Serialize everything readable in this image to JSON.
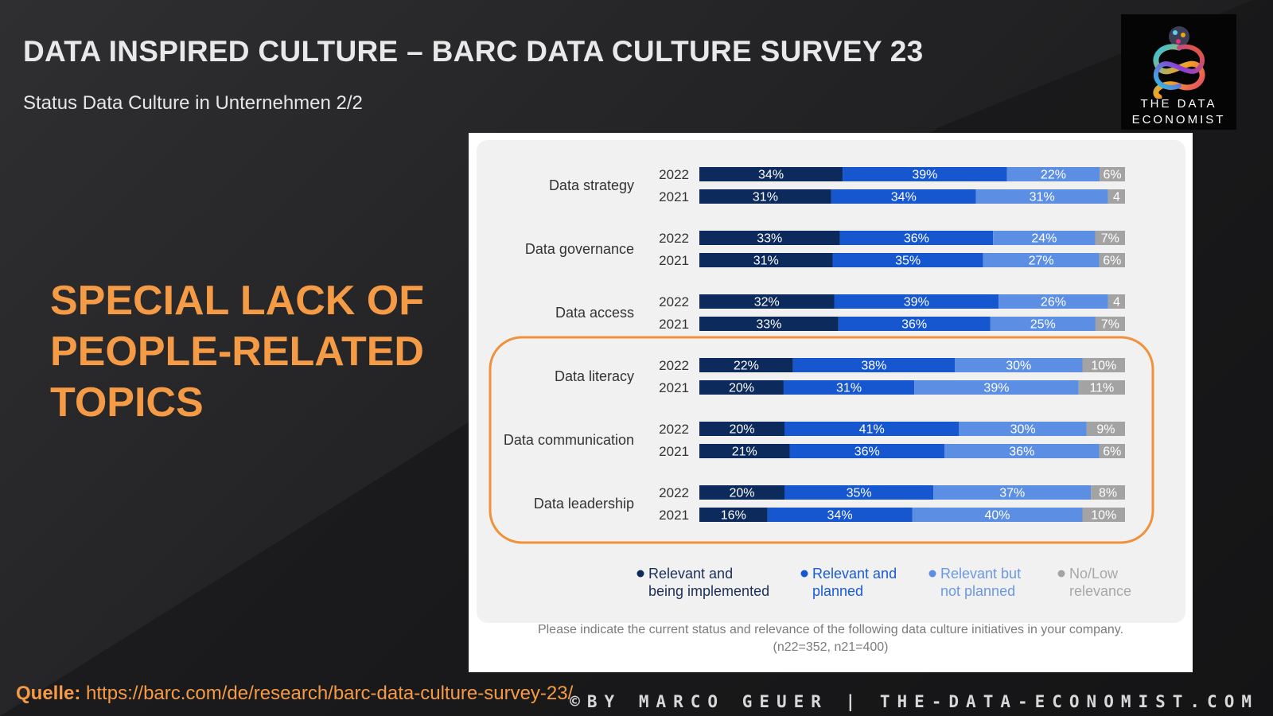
{
  "slide": {
    "title": "DATA INSPIRED CULTURE – BARC DATA CULTURE SURVEY 23",
    "subtitle": "Status Data Culture in Unternehmen 2/2",
    "highlight_lines": [
      "SPECIAL LACK OF",
      "PEOPLE-RELATED",
      "TOPICS"
    ],
    "source_label": "Quelle:",
    "source_url": "https://barc.com/de/research/barc-data-culture-survey-23/",
    "copyright": "©BY MARCO GEUER | THE-DATA-ECONOMIST.COM",
    "logo_lines": [
      "THE DATA",
      "ECONOMIST"
    ],
    "logo_icon": "infinity-head-logo-icon",
    "accent_color": "#f59a45"
  },
  "chart_data": {
    "type": "bar",
    "orientation": "horizontal",
    "stacked": true,
    "percent_scale": true,
    "categories": [
      "Data strategy",
      "Data governance",
      "Data access",
      "Data literacy",
      "Data communication",
      "Data leadership"
    ],
    "years": [
      "2022",
      "2021"
    ],
    "series": [
      {
        "name": "Relevant and being implemented",
        "color": "#0c2a5b",
        "label_color": "#1b2f57",
        "values": [
          [
            34,
            31
          ],
          [
            33,
            31
          ],
          [
            32,
            33
          ],
          [
            22,
            20
          ],
          [
            20,
            21
          ],
          [
            20,
            16
          ]
        ]
      },
      {
        "name": "Relevant and planned",
        "color": "#1657d0",
        "label_color": "#1a5ad6",
        "values": [
          [
            39,
            34
          ],
          [
            36,
            35
          ],
          [
            39,
            36
          ],
          [
            38,
            31
          ],
          [
            41,
            36
          ],
          [
            35,
            34
          ]
        ]
      },
      {
        "name": "Relevant but not planned",
        "color": "#5c8fe3",
        "label_color": "#6b98e6",
        "values": [
          [
            22,
            31
          ],
          [
            24,
            27
          ],
          [
            26,
            25
          ],
          [
            30,
            39
          ],
          [
            30,
            36
          ],
          [
            37,
            40
          ]
        ]
      },
      {
        "name": "No/Low relevance",
        "color": "#a3a3a3",
        "label_color": "#a8a8a8",
        "values": [
          [
            6,
            4
          ],
          [
            7,
            6
          ],
          [
            4,
            7
          ],
          [
            10,
            11
          ],
          [
            9,
            6
          ],
          [
            8,
            10
          ]
        ]
      }
    ],
    "value_labels": [
      [
        [
          "34%",
          "39%",
          "22%",
          "6%"
        ],
        [
          "31%",
          "34%",
          "31%",
          "4"
        ]
      ],
      [
        [
          "33%",
          "36%",
          "24%",
          "7%"
        ],
        [
          "31%",
          "35%",
          "27%",
          "6%"
        ]
      ],
      [
        [
          "32%",
          "39%",
          "26%",
          "4"
        ],
        [
          "33%",
          "36%",
          "25%",
          "7%"
        ]
      ],
      [
        [
          "22%",
          "38%",
          "30%",
          "10%"
        ],
        [
          "20%",
          "31%",
          "39%",
          "11%"
        ]
      ],
      [
        [
          "20%",
          "41%",
          "30%",
          "9%"
        ],
        [
          "21%",
          "36%",
          "36%",
          "6%"
        ]
      ],
      [
        [
          "20%",
          "35%",
          "37%",
          "8%"
        ],
        [
          "16%",
          "34%",
          "40%",
          "10%"
        ]
      ]
    ],
    "legend_labels": [
      [
        "Relevant and",
        "being implemented"
      ],
      [
        "Relevant and",
        "planned"
      ],
      [
        "Relevant but",
        "not planned"
      ],
      [
        "No/Low",
        "relevance"
      ]
    ],
    "highlighted_categories": [
      "Data literacy",
      "Data communication",
      "Data leadership"
    ],
    "highlight_color": "#f0913b",
    "note_lines": [
      "Please indicate the current status and relevance of the following data culture initiatives in your company.",
      "(n22=352, n21=400)"
    ],
    "legend_position": "bottom",
    "grid": false
  }
}
